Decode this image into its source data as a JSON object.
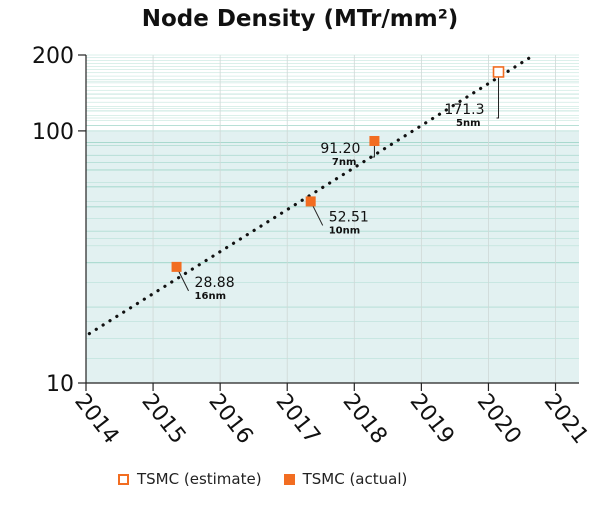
{
  "chart_data": {
    "type": "scatter",
    "title": "Node Density (MTr/mm²)",
    "xlabel": "",
    "ylabel": "",
    "x_scale": "linear",
    "y_scale": "log",
    "xlim": [
      2014,
      2021.35
    ],
    "ylim": [
      10,
      200
    ],
    "x_ticks": [
      "2014",
      "2015",
      "2016",
      "2017",
      "2018",
      "2019",
      "2020",
      "2021"
    ],
    "y_ticks": [
      "10",
      "100",
      "200"
    ],
    "grid": true,
    "legend_position": "bottom",
    "series": [
      {
        "name": "TSMC (estimate)",
        "marker": "hollow-square",
        "color": "#f26d21",
        "points": [
          {
            "x": 2020.15,
            "y": 171.3,
            "label": "171.3",
            "node": "5nm"
          }
        ]
      },
      {
        "name": "TSMC (actual)",
        "marker": "filled-square",
        "color": "#f26d21",
        "points": [
          {
            "x": 2015.35,
            "y": 28.88,
            "label": "28.88",
            "node": "16nm"
          },
          {
            "x": 2017.35,
            "y": 52.51,
            "label": "52.51",
            "node": "10nm"
          },
          {
            "x": 2018.3,
            "y": 91.2,
            "label": "91.20",
            "node": "7nm"
          }
        ]
      }
    ],
    "trend_line": {
      "style": "dotted",
      "color": "#111111",
      "from": {
        "x": 2014.05,
        "y": 15.7
      },
      "to": {
        "x": 2020.6,
        "y": 194
      }
    },
    "colors": {
      "accent": "#f26d21",
      "shaded_band": "#e2f1f1",
      "grid": "#9fd6c9"
    }
  }
}
